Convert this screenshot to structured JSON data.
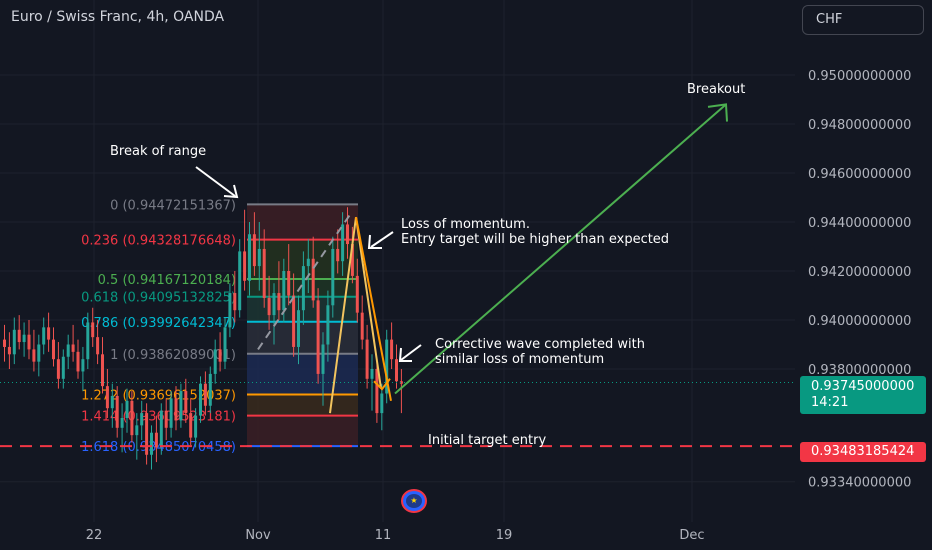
{
  "header": {
    "title": "Euro / Swiss Franc, 4h, OANDA",
    "currency_button": "CHF"
  },
  "price_tags": {
    "last_price": "0.93745000000",
    "countdown": "14:21",
    "target_price": "0.93483185424"
  },
  "colors": {
    "background": "#131722",
    "candle_up": "#26a69a",
    "candle_down": "#ef5350",
    "breakout_arrow": "#4caf50",
    "wave_line": "#f2c45f",
    "target_line": "#f23645",
    "last_price_tag": "#089981"
  },
  "chart_data": {
    "type": "candlestick",
    "symbol": "Euro / Swiss Franc",
    "interval": "4h",
    "source": "OANDA",
    "y_axis": {
      "ticks": [
        "0.95000000000",
        "0.94800000000",
        "0.94600000000",
        "0.94400000000",
        "0.94200000000",
        "0.94000000000",
        "0.93800000000",
        "0.93340000000"
      ],
      "tick_values": [
        0.95,
        0.948,
        0.946,
        0.944,
        0.942,
        0.94,
        0.938,
        0.9334
      ],
      "range": [
        0.9325,
        0.9515
      ]
    },
    "x_axis": {
      "ticks": [
        "22",
        "Nov",
        "11",
        "19",
        "Dec"
      ]
    },
    "fibonacci": [
      {
        "label": "0 (0.94472151367)",
        "value": 0.94472151367,
        "color": "#787b86"
      },
      {
        "label": "0.236 (0.94328176648)",
        "value": 0.94328176648,
        "color": "#f23645"
      },
      {
        "label": "0.5 (0.94167120184)",
        "value": 0.94167120184,
        "color": "#4caf50"
      },
      {
        "label": "0.618 (0.94095132825)",
        "value": 0.94095132825,
        "color": "#089981"
      },
      {
        "label": "0.786 (0.93992642347)",
        "value": 0.93992642347,
        "color": "#00bcd4"
      },
      {
        "label": "1 (0.93862089001)",
        "value": 0.93862089001,
        "color": "#787b86"
      },
      {
        "label": "1.272 (0.93696152037)",
        "value": 0.93696152037,
        "color": "#ff9800"
      },
      {
        "label": "1.414 (0.93609523181)",
        "value": 0.93609523181,
        "color": "#f23645"
      },
      {
        "label": "1.618 (0.93485070458)",
        "value": 0.93485070458,
        "color": "#2962ff"
      }
    ],
    "annotations": [
      {
        "text": "Break of range"
      },
      {
        "text": "Loss of momentum.\nEntry target will be higher than expected"
      },
      {
        "text": "Corrective wave completed with\nsimilar loss of momentum"
      },
      {
        "text": "Breakout"
      },
      {
        "text": "Initial target entry"
      }
    ],
    "candles_ohlc": [
      [
        0.9392,
        0.9398,
        0.9383,
        0.9389
      ],
      [
        0.9389,
        0.9395,
        0.938,
        0.9386
      ],
      [
        0.9386,
        0.9401,
        0.9382,
        0.9396
      ],
      [
        0.9396,
        0.9402,
        0.9388,
        0.9391
      ],
      [
        0.9391,
        0.9399,
        0.9385,
        0.9394
      ],
      [
        0.9394,
        0.94,
        0.9384,
        0.9388
      ],
      [
        0.9388,
        0.9396,
        0.9379,
        0.9383
      ],
      [
        0.9383,
        0.9394,
        0.9377,
        0.939
      ],
      [
        0.939,
        0.9401,
        0.9386,
        0.9397
      ],
      [
        0.9397,
        0.9403,
        0.9387,
        0.9392
      ],
      [
        0.9392,
        0.9397,
        0.9381,
        0.9384
      ],
      [
        0.9384,
        0.9391,
        0.9372,
        0.9376
      ],
      [
        0.9376,
        0.9388,
        0.9372,
        0.9385
      ],
      [
        0.9385,
        0.9394,
        0.938,
        0.939
      ],
      [
        0.939,
        0.9398,
        0.9383,
        0.9387
      ],
      [
        0.9387,
        0.9392,
        0.9376,
        0.9379
      ],
      [
        0.9379,
        0.9389,
        0.9371,
        0.9384
      ],
      [
        0.9384,
        0.9403,
        0.938,
        0.9399
      ],
      [
        0.9399,
        0.9405,
        0.9389,
        0.9393
      ],
      [
        0.9393,
        0.94,
        0.9382,
        0.9386
      ],
      [
        0.9386,
        0.9393,
        0.937,
        0.9373
      ],
      [
        0.9373,
        0.938,
        0.936,
        0.9364
      ],
      [
        0.9364,
        0.9374,
        0.9356,
        0.9369
      ],
      [
        0.9369,
        0.9373,
        0.9352,
        0.9356
      ],
      [
        0.9356,
        0.9366,
        0.9346,
        0.936
      ],
      [
        0.936,
        0.9372,
        0.9354,
        0.9367
      ],
      [
        0.9367,
        0.9371,
        0.935,
        0.9353
      ],
      [
        0.9353,
        0.9362,
        0.9343,
        0.9357
      ],
      [
        0.9357,
        0.9367,
        0.9351,
        0.9362
      ],
      [
        0.9362,
        0.9366,
        0.9341,
        0.9345
      ],
      [
        0.9345,
        0.9357,
        0.9339,
        0.9354
      ],
      [
        0.9354,
        0.9361,
        0.9342,
        0.9348
      ],
      [
        0.9348,
        0.9366,
        0.9345,
        0.9363
      ],
      [
        0.9363,
        0.9368,
        0.9351,
        0.9356
      ],
      [
        0.9356,
        0.9371,
        0.9352,
        0.9368
      ],
      [
        0.9368,
        0.9373,
        0.9355,
        0.9359
      ],
      [
        0.9359,
        0.9374,
        0.9356,
        0.9371
      ],
      [
        0.9371,
        0.9376,
        0.9358,
        0.9362
      ],
      [
        0.9362,
        0.9368,
        0.9349,
        0.9352
      ],
      [
        0.9352,
        0.9364,
        0.9348,
        0.9361
      ],
      [
        0.9361,
        0.9377,
        0.9358,
        0.9374
      ],
      [
        0.9374,
        0.9379,
        0.9361,
        0.9365
      ],
      [
        0.9365,
        0.9381,
        0.9362,
        0.9378
      ],
      [
        0.9378,
        0.9392,
        0.9374,
        0.9388
      ],
      [
        0.9388,
        0.9395,
        0.9379,
        0.9383
      ],
      [
        0.9383,
        0.9401,
        0.938,
        0.9397
      ],
      [
        0.9397,
        0.9415,
        0.9393,
        0.9411
      ],
      [
        0.9411,
        0.942,
        0.9399,
        0.9404
      ],
      [
        0.9404,
        0.9433,
        0.9401,
        0.9428
      ],
      [
        0.9428,
        0.9445,
        0.9412,
        0.9416
      ],
      [
        0.9416,
        0.944,
        0.941,
        0.9435
      ],
      [
        0.9435,
        0.9444,
        0.9418,
        0.9422
      ],
      [
        0.9422,
        0.944,
        0.9412,
        0.9429
      ],
      [
        0.9429,
        0.9437,
        0.9405,
        0.9409
      ],
      [
        0.9409,
        0.9418,
        0.9396,
        0.9402
      ],
      [
        0.9402,
        0.9415,
        0.939,
        0.9411
      ],
      [
        0.9411,
        0.9424,
        0.94,
        0.9404
      ],
      [
        0.9404,
        0.9425,
        0.9399,
        0.942
      ],
      [
        0.942,
        0.9431,
        0.9406,
        0.941
      ],
      [
        0.941,
        0.9419,
        0.9385,
        0.9389
      ],
      [
        0.9389,
        0.941,
        0.9382,
        0.9404
      ],
      [
        0.9404,
        0.9428,
        0.9398,
        0.9422
      ],
      [
        0.9422,
        0.9433,
        0.9411,
        0.9425
      ],
      [
        0.9425,
        0.9434,
        0.9405,
        0.9408
      ],
      [
        0.9408,
        0.9413,
        0.9374,
        0.9378
      ],
      [
        0.9378,
        0.9395,
        0.9365,
        0.939
      ],
      [
        0.939,
        0.9412,
        0.9383,
        0.9406
      ],
      [
        0.9406,
        0.9434,
        0.9401,
        0.9429
      ],
      [
        0.9429,
        0.9437,
        0.9419,
        0.9424
      ],
      [
        0.9424,
        0.9444,
        0.9418,
        0.9439
      ],
      [
        0.9439,
        0.9446,
        0.9425,
        0.9431
      ],
      [
        0.9431,
        0.9438,
        0.9415,
        0.9418
      ],
      [
        0.9418,
        0.9425,
        0.9399,
        0.9403
      ],
      [
        0.9403,
        0.941,
        0.9388,
        0.9392
      ],
      [
        0.9392,
        0.9398,
        0.9372,
        0.9376
      ],
      [
        0.9376,
        0.9386,
        0.9363,
        0.938
      ],
      [
        0.938,
        0.9384,
        0.9358,
        0.9362
      ],
      [
        0.9362,
        0.9374,
        0.9355,
        0.937
      ],
      [
        0.937,
        0.9396,
        0.9366,
        0.9392
      ],
      [
        0.9392,
        0.9399,
        0.938,
        0.9384
      ],
      [
        0.9384,
        0.939,
        0.9372,
        0.9375
      ],
      [
        0.9375,
        0.938,
        0.9362,
        0.9374
      ]
    ]
  }
}
